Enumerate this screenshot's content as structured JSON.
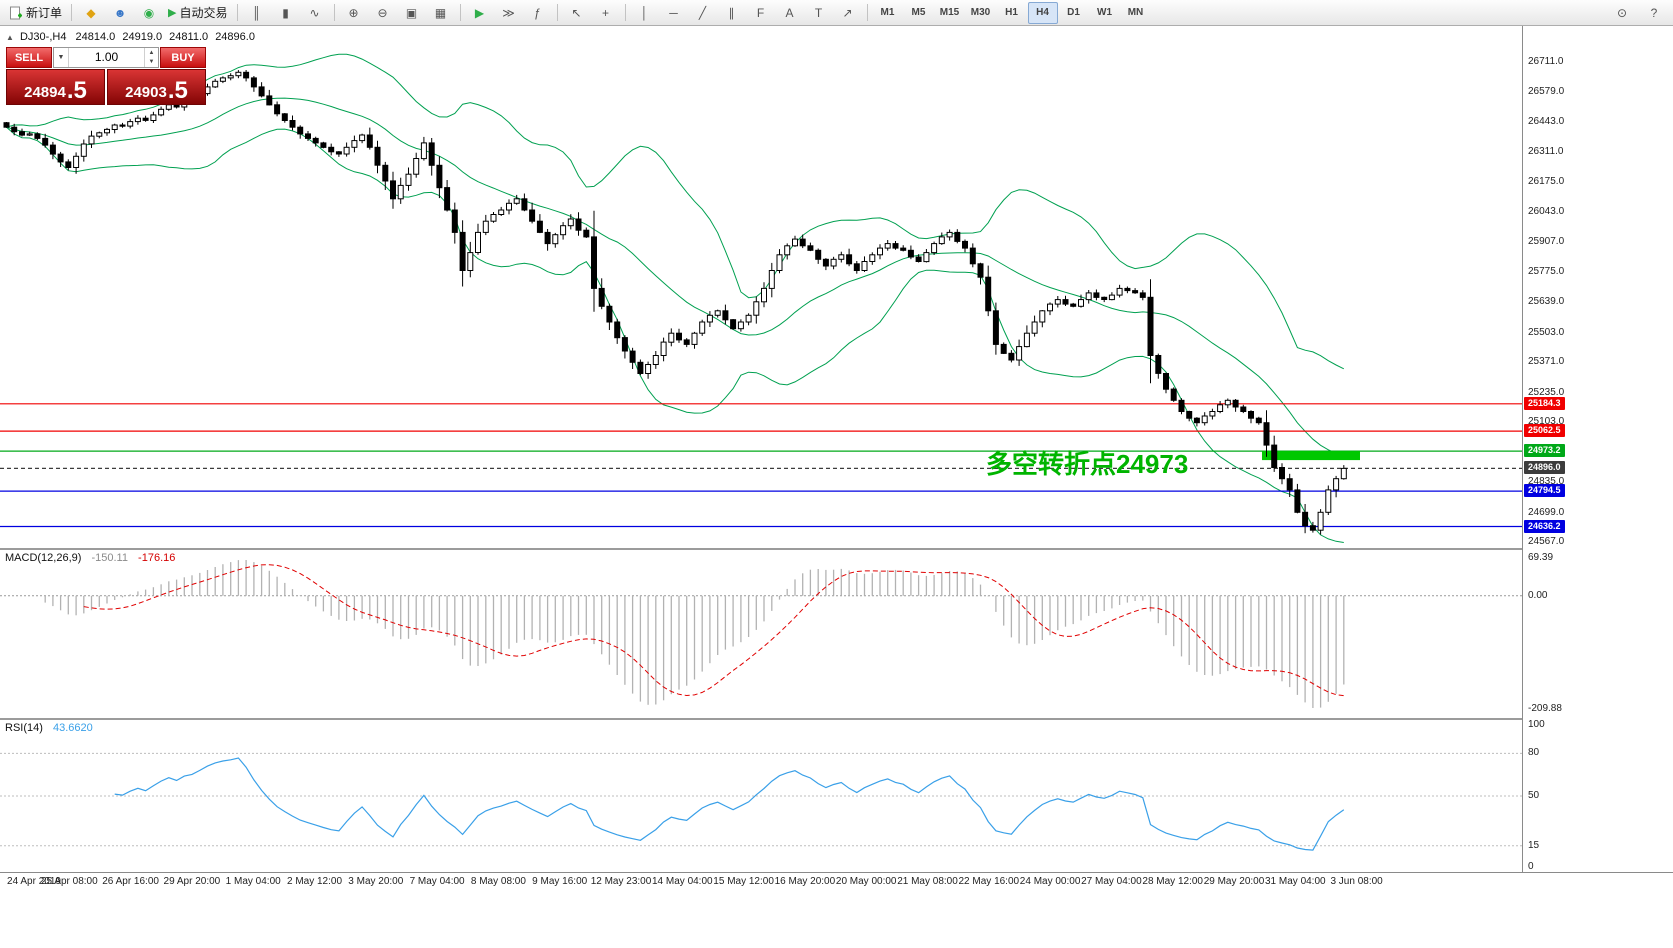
{
  "toolbar": {
    "new_order_label": "新订单",
    "autotrade_label": "自动交易",
    "autotrade_icon": "▶",
    "left_icons": [
      {
        "name": "market-watch-icon",
        "glyph": "◆",
        "color": "#e0a312"
      },
      {
        "name": "profile-icon",
        "glyph": "☻",
        "color": "#3a78c8"
      },
      {
        "name": "community-icon",
        "glyph": "◉",
        "color": "#2fae4a"
      }
    ],
    "tool_icons": [
      {
        "name": "bar-chart-icon",
        "glyph": "║"
      },
      {
        "name": "candlestick-icon",
        "glyph": "▮"
      },
      {
        "name": "line-chart-icon",
        "glyph": "∿"
      },
      {
        "sep": true
      },
      {
        "name": "zoom-in-icon",
        "glyph": "⊕"
      },
      {
        "name": "zoom-out-icon",
        "glyph": "⊖"
      },
      {
        "name": "tile-windows-icon",
        "glyph": "▣"
      },
      {
        "name": "grid-icon",
        "glyph": "▦"
      },
      {
        "sep": true
      },
      {
        "name": "auto-scroll-icon",
        "glyph": "▶",
        "color": "#2fae4a"
      },
      {
        "name": "chart-shift-icon",
        "glyph": "≫"
      },
      {
        "name": "indicators-icon",
        "glyph": "ƒ"
      },
      {
        "sep": true
      },
      {
        "name": "cursor-icon",
        "glyph": "↖"
      },
      {
        "name": "crosshair-icon",
        "glyph": "+"
      },
      {
        "sep": true
      },
      {
        "name": "vertical-line-icon",
        "glyph": "│"
      },
      {
        "name": "horizontal-line-icon",
        "glyph": "─"
      },
      {
        "name": "trendline-icon",
        "glyph": "╱"
      },
      {
        "name": "channel-icon",
        "glyph": "∥"
      },
      {
        "name": "fibonacci-icon",
        "glyph": "F"
      },
      {
        "name": "text-icon",
        "glyph": "A"
      },
      {
        "name": "label-icon",
        "glyph": "T"
      },
      {
        "name": "arrows-icon",
        "glyph": "↗"
      }
    ],
    "timeframes": [
      {
        "label": "M1"
      },
      {
        "label": "M5"
      },
      {
        "label": "M15"
      },
      {
        "label": "M30"
      },
      {
        "label": "H1"
      },
      {
        "label": "H4",
        "active": true
      },
      {
        "label": "D1"
      },
      {
        "label": "W1"
      },
      {
        "label": "MN"
      }
    ],
    "right_icons": [
      {
        "name": "search-icon",
        "glyph": "⊙"
      },
      {
        "name": "help-icon",
        "glyph": "?"
      }
    ]
  },
  "symbol_info": {
    "collapse_icon": "▲",
    "symbol": "DJ30-,H4",
    "open": "24814.0",
    "high": "24919.0",
    "low": "24811.0",
    "close": "24896.0"
  },
  "one_click": {
    "sell_label": "SELL",
    "buy_label": "BUY",
    "volume": "1.00",
    "sell_price": {
      "main": "24894",
      "big": ".5"
    },
    "buy_price": {
      "main": "24903",
      "big": ".5"
    }
  },
  "annotation": {
    "text": "多空转折点24973",
    "color": "#00b400",
    "zone_price": 24973.2
  },
  "levels": [
    {
      "label": "25184.3",
      "price": 25184.3,
      "color": "#f00000"
    },
    {
      "label": "25062.5",
      "price": 25062.5,
      "color": "#f00000"
    },
    {
      "label": "24973.2",
      "price": 24973.2,
      "color": "#00a818"
    },
    {
      "label": "24896.0",
      "price": 24896.0,
      "color": "#3c3c3c",
      "current": true
    },
    {
      "label": "24794.5",
      "price": 24794.5,
      "color": "#0000e0"
    },
    {
      "label": "24636.2",
      "price": 24636.2,
      "color": "#0000e0"
    }
  ],
  "price_axis": {
    "ticks": [
      "26711.0",
      "26579.0",
      "26443.0",
      "26311.0",
      "26175.0",
      "26043.0",
      "25907.0",
      "25775.0",
      "25639.0",
      "25503.0",
      "25371.0",
      "25235.0",
      "25103.0",
      "24835.0",
      "24699.0",
      "24567.0"
    ]
  },
  "time_axis": [
    "24 Apr 2019",
    "25 Apr 08:00",
    "26 Apr 16:00",
    "29 Apr 20:00",
    "1 May 04:00",
    "2 May 12:00",
    "3 May 20:00",
    "7 May 04:00",
    "8 May 08:00",
    "9 May 16:00",
    "12 May 23:00",
    "14 May 04:00",
    "15 May 12:00",
    "16 May 20:00",
    "20 May 00:00",
    "21 May 08:00",
    "22 May 16:00",
    "24 May 00:00",
    "27 May 04:00",
    "28 May 12:00",
    "29 May 20:00",
    "31 May 04:00",
    "3 Jun 08:00"
  ],
  "macd": {
    "name": "MACD(12,26,9)",
    "value_main": "-150.11",
    "value_signal": "-176.16",
    "axis_labels": [
      "69.39",
      "0.00",
      "-209.88"
    ]
  },
  "rsi": {
    "name": "RSI(14)",
    "value": "43.6620",
    "levels": [
      80,
      50,
      15
    ],
    "axis_labels": [
      "100",
      "80",
      "50",
      "15",
      "0"
    ]
  },
  "chart_data": {
    "type": "candlestick",
    "symbol": "DJ30-",
    "timeframe": "H4",
    "price_axis_range": [
      24540,
      26872
    ],
    "bollinger": {
      "period": 20,
      "deviation": 2,
      "color": "#00a050"
    },
    "indicators": [
      {
        "name": "MACD",
        "params": [
          12,
          26,
          9
        ]
      },
      {
        "name": "RSI",
        "params": [
          14
        ]
      }
    ],
    "closes": [
      26420,
      26400,
      26385,
      26390,
      26370,
      26340,
      26300,
      26265,
      26240,
      26290,
      26345,
      26380,
      26395,
      26410,
      26430,
      26425,
      26445,
      26460,
      26450,
      26475,
      26500,
      26520,
      26510,
      26535,
      26545,
      26570,
      26600,
      26625,
      26640,
      26650,
      26665,
      26640,
      26600,
      26560,
      26520,
      26480,
      26450,
      26420,
      26390,
      26370,
      26350,
      26330,
      26310,
      26300,
      26330,
      26360,
      26385,
      26330,
      26250,
      26180,
      26100,
      26160,
      26210,
      26280,
      26350,
      26250,
      26150,
      26050,
      25950,
      25780,
      25860,
      25950,
      26000,
      26030,
      26050,
      26080,
      26100,
      26050,
      26000,
      25950,
      25900,
      25940,
      25980,
      26010,
      25960,
      25930,
      25700,
      25620,
      25550,
      25480,
      25420,
      25370,
      25320,
      25360,
      25400,
      25460,
      25500,
      25470,
      25450,
      25500,
      25550,
      25580,
      25600,
      25560,
      25520,
      25550,
      25580,
      25640,
      25700,
      25780,
      25850,
      25890,
      25920,
      25890,
      25870,
      25830,
      25800,
      25830,
      25850,
      25810,
      25780,
      25820,
      25850,
      25880,
      25900,
      25880,
      25870,
      25840,
      25820,
      25860,
      25900,
      25930,
      25950,
      25910,
      25880,
      25810,
      25750,
      25600,
      25450,
      25410,
      25380,
      25440,
      25500,
      25550,
      25600,
      25630,
      25650,
      25630,
      25620,
      25650,
      25680,
      25660,
      25650,
      25670,
      25700,
      25690,
      25680,
      25660,
      25400,
      25320,
      25250,
      25200,
      25150,
      25120,
      25100,
      25130,
      25150,
      25180,
      25200,
      25170,
      25150,
      25120,
      25100,
      25000,
      24900,
      24850,
      24800,
      24700,
      24640,
      24620,
      24700,
      24800,
      24850,
      24896
    ]
  }
}
